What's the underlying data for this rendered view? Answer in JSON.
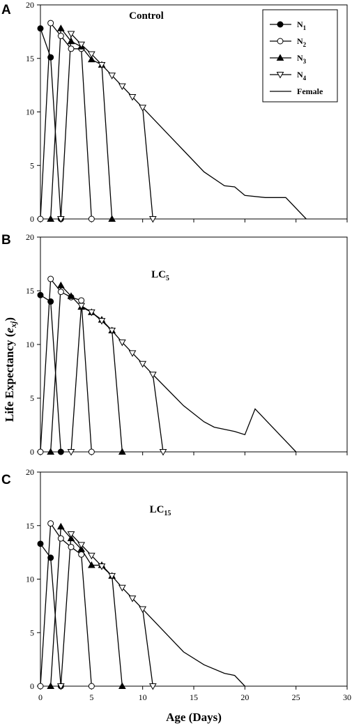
{
  "figure": {
    "ylabel": "Life Expectancy (exj)",
    "ylabel_main": "Life Expectancy (",
    "ylabel_var": "e",
    "ylabel_sub": "xj",
    "ylabel_close": ")",
    "xlabel": "Age (Days)"
  },
  "legend": {
    "items": [
      {
        "base": "N",
        "sub": "1",
        "marker": "filled-circle"
      },
      {
        "base": "N",
        "sub": "2",
        "marker": "open-circle"
      },
      {
        "base": "N",
        "sub": "3",
        "marker": "filled-triangle-up"
      },
      {
        "base": "N",
        "sub": "4",
        "marker": "open-triangle-down"
      },
      {
        "base": "Female",
        "sub": "",
        "marker": "line"
      }
    ]
  },
  "chart_data": [
    {
      "type": "line",
      "panel": "A",
      "title": "Control",
      "title_base": "Control",
      "title_sub": "",
      "xlim": [
        0,
        30
      ],
      "ylim": [
        0,
        20
      ],
      "x_ticks": [
        "0",
        "5",
        "10",
        "15",
        "20",
        "25",
        "30"
      ],
      "y_ticks": [
        "0",
        "5",
        "10",
        "15",
        "20"
      ],
      "show_x_tick_labels": false,
      "series": [
        {
          "name": "N1",
          "marker": "filled-circle",
          "x": [
            0,
            1,
            2
          ],
          "y": [
            17.8,
            15.1,
            0
          ]
        },
        {
          "name": "N2",
          "marker": "open-circle",
          "x": [
            0,
            1,
            2,
            3,
            4,
            5
          ],
          "y": [
            0,
            18.3,
            17.1,
            15.9,
            15.9,
            0
          ]
        },
        {
          "name": "N3",
          "marker": "filled-triangle-up",
          "x": [
            1,
            2,
            3,
            4,
            5,
            6,
            7
          ],
          "y": [
            0,
            17.8,
            16.6,
            16.1,
            14.9,
            14.4,
            0
          ]
        },
        {
          "name": "N4",
          "marker": "open-triangle-down",
          "x": [
            2,
            3,
            4,
            5,
            6,
            7,
            8,
            9,
            10,
            11
          ],
          "y": [
            0,
            17.3,
            16.3,
            15.4,
            14.4,
            13.4,
            12.4,
            11.4,
            10.4,
            0
          ]
        },
        {
          "name": "Female",
          "marker": "none",
          "x": [
            10,
            12,
            14,
            16,
            18,
            19,
            20,
            22,
            24,
            26
          ],
          "y": [
            10.4,
            8.4,
            6.4,
            4.4,
            3.1,
            3.0,
            2.2,
            2.0,
            2.0,
            0
          ]
        }
      ]
    },
    {
      "type": "line",
      "panel": "B",
      "title": "LC5",
      "title_base": "LC",
      "title_sub": "5",
      "xlim": [
        0,
        30
      ],
      "ylim": [
        0,
        20
      ],
      "x_ticks": [
        "0",
        "5",
        "10",
        "15",
        "20",
        "25",
        "30"
      ],
      "y_ticks": [
        "0",
        "5",
        "10",
        "15",
        "20"
      ],
      "show_x_tick_labels": false,
      "series": [
        {
          "name": "N1",
          "marker": "filled-circle",
          "x": [
            0,
            1,
            2
          ],
          "y": [
            14.6,
            14.0,
            0
          ]
        },
        {
          "name": "N2",
          "marker": "open-circle",
          "x": [
            0,
            1,
            2,
            3,
            4,
            5
          ],
          "y": [
            0,
            16.1,
            14.9,
            14.4,
            14.1,
            0
          ]
        },
        {
          "name": "N3",
          "marker": "filled-triangle-up",
          "x": [
            1,
            2,
            3,
            4,
            5,
            6,
            7,
            8
          ],
          "y": [
            0,
            15.5,
            14.5,
            13.5,
            13.0,
            12.3,
            11.3,
            0
          ]
        },
        {
          "name": "N4",
          "marker": "open-triangle-down",
          "x": [
            3,
            4,
            5,
            6,
            7,
            8,
            9,
            10,
            11,
            12
          ],
          "y": [
            0,
            13.6,
            13.0,
            12.2,
            11.3,
            10.2,
            9.2,
            8.2,
            7.2,
            0
          ]
        },
        {
          "name": "Female",
          "marker": "none",
          "x": [
            11,
            14,
            16,
            17,
            19,
            20,
            21,
            25
          ],
          "y": [
            7.2,
            4.3,
            2.8,
            2.3,
            1.9,
            1.6,
            4.0,
            0
          ]
        }
      ]
    },
    {
      "type": "line",
      "panel": "C",
      "title": "LC15",
      "title_base": "LC",
      "title_sub": "15",
      "xlim": [
        0,
        30
      ],
      "ylim": [
        0,
        20
      ],
      "x_ticks": [
        "0",
        "5",
        "10",
        "15",
        "20",
        "25",
        "30"
      ],
      "y_ticks": [
        "0",
        "5",
        "10",
        "15",
        "20"
      ],
      "show_x_tick_labels": true,
      "series": [
        {
          "name": "N1",
          "marker": "filled-circle",
          "x": [
            0,
            1,
            2
          ],
          "y": [
            13.3,
            12.0,
            0
          ]
        },
        {
          "name": "N2",
          "marker": "open-circle",
          "x": [
            0,
            1,
            2,
            3,
            4,
            5
          ],
          "y": [
            0,
            15.2,
            13.8,
            13.0,
            12.3,
            0
          ]
        },
        {
          "name": "N3",
          "marker": "filled-triangle-up",
          "x": [
            1,
            2,
            3,
            4,
            5,
            6,
            7,
            8
          ],
          "y": [
            0,
            14.9,
            13.8,
            12.8,
            11.3,
            11.3,
            10.3,
            0
          ]
        },
        {
          "name": "N4",
          "marker": "open-triangle-down",
          "x": [
            2,
            3,
            4,
            5,
            6,
            7,
            8,
            9,
            10,
            11
          ],
          "y": [
            0,
            14.2,
            13.2,
            12.2,
            11.2,
            10.3,
            9.2,
            8.2,
            7.2,
            0
          ]
        },
        {
          "name": "Female",
          "marker": "none",
          "x": [
            10,
            12,
            14,
            16,
            18,
            19,
            20
          ],
          "y": [
            7.2,
            5.2,
            3.2,
            2.0,
            1.2,
            1.0,
            0
          ]
        }
      ]
    }
  ]
}
